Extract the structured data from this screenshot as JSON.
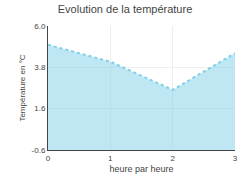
{
  "chart_data": {
    "type": "area",
    "title": "Evolution de la température",
    "xlabel": "heure par heure",
    "ylabel": "Température en °C",
    "x": [
      0,
      1,
      2,
      3
    ],
    "values": [
      5.0,
      4.1,
      2.6,
      4.55
    ],
    "color": "#7ecfe8",
    "line_style": "dotted",
    "xlim": [
      0,
      3
    ],
    "ylim": [
      -0.6,
      6.0
    ],
    "xticks": [
      0,
      1,
      2,
      3
    ],
    "yticks": [
      -0.6,
      1.6,
      3.8,
      {
        "value": 6.0,
        "label": "6.0"
      }
    ],
    "grid": true
  }
}
